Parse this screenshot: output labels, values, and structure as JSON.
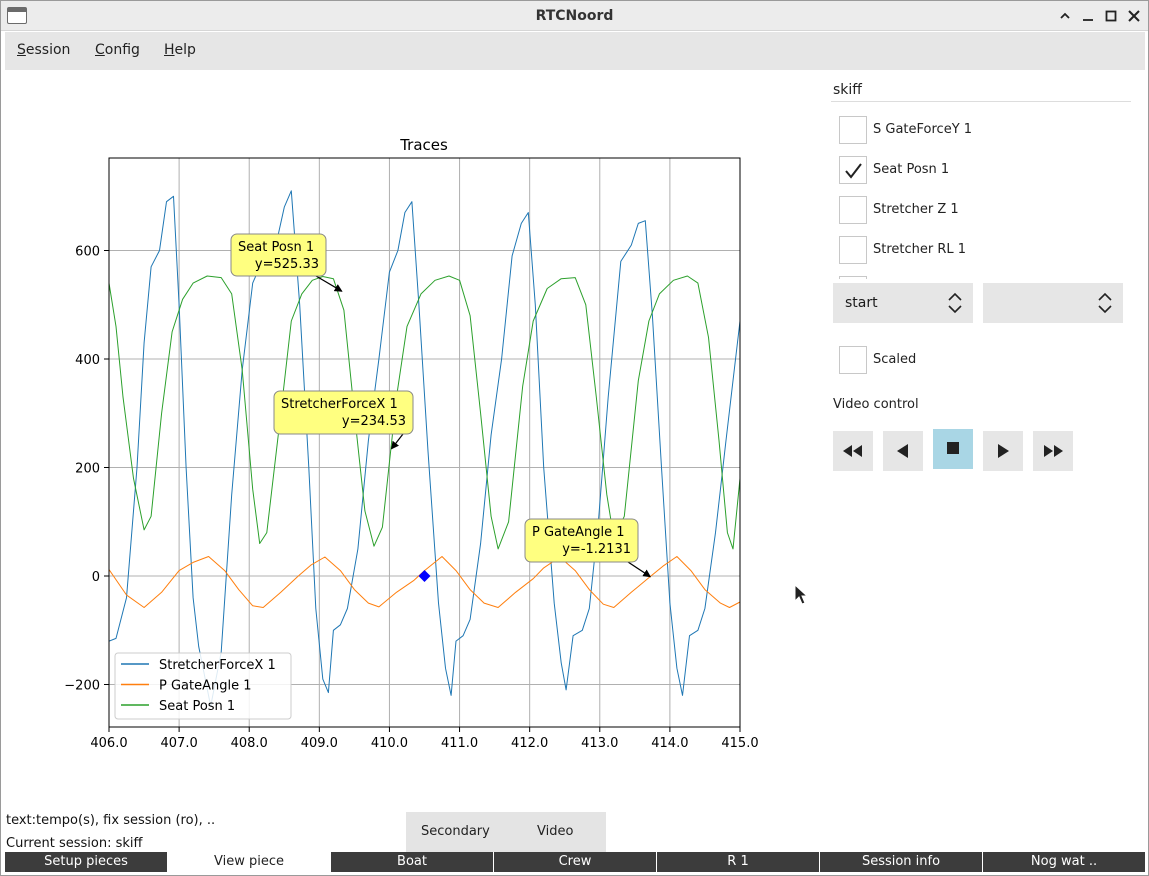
{
  "window": {
    "title": "RTCNoord"
  },
  "menu": [
    {
      "first": "S",
      "rest": "ession"
    },
    {
      "first": "C",
      "rest": "onfig"
    },
    {
      "first": "H",
      "rest": "elp"
    }
  ],
  "chart_data": {
    "type": "line",
    "title": "Traces",
    "xlim": [
      406.0,
      415.0
    ],
    "ylim": [
      -280,
      760
    ],
    "x_ticks": [
      "406.0",
      "407.0",
      "408.0",
      "409.0",
      "410.0",
      "411.0",
      "412.0",
      "413.0",
      "414.0",
      "415.0"
    ],
    "y_ticks": [
      -200,
      0,
      200,
      400,
      600
    ],
    "y_tick_labels": [
      "−200",
      "0",
      "200",
      "400",
      "600"
    ],
    "grid": true,
    "legend_position": "lower-left",
    "series": [
      {
        "name": "StretcherForceX 1",
        "color": "#1f77b4",
        "points": [
          [
            406.0,
            -120
          ],
          [
            406.1,
            -115
          ],
          [
            406.25,
            -40
          ],
          [
            406.4,
            200
          ],
          [
            406.5,
            430
          ],
          [
            406.6,
            570
          ],
          [
            406.72,
            600
          ],
          [
            406.82,
            690
          ],
          [
            406.92,
            700
          ],
          [
            407.0,
            500
          ],
          [
            407.1,
            200
          ],
          [
            407.2,
            -40
          ],
          [
            407.28,
            -130
          ],
          [
            407.45,
            -240
          ],
          [
            407.6,
            -140
          ],
          [
            407.75,
            150
          ],
          [
            407.9,
            380
          ],
          [
            408.05,
            540
          ],
          [
            408.25,
            600
          ],
          [
            408.38,
            610
          ],
          [
            408.5,
            680
          ],
          [
            408.6,
            710
          ],
          [
            408.72,
            500
          ],
          [
            408.85,
            200
          ],
          [
            408.95,
            -60
          ],
          [
            409.05,
            -190
          ],
          [
            409.13,
            -215
          ],
          [
            409.2,
            -100
          ],
          [
            409.3,
            -90
          ],
          [
            409.4,
            -60
          ],
          [
            409.55,
            50
          ],
          [
            409.7,
            250
          ],
          [
            409.85,
            400
          ],
          [
            410.0,
            560
          ],
          [
            410.12,
            600
          ],
          [
            410.22,
            670
          ],
          [
            410.32,
            690
          ],
          [
            410.42,
            500
          ],
          [
            410.55,
            230
          ],
          [
            410.7,
            -50
          ],
          [
            410.8,
            -170
          ],
          [
            410.88,
            -220
          ],
          [
            410.95,
            -120
          ],
          [
            411.05,
            -110
          ],
          [
            411.15,
            -80
          ],
          [
            411.3,
            60
          ],
          [
            411.45,
            260
          ],
          [
            411.6,
            400
          ],
          [
            411.75,
            590
          ],
          [
            411.88,
            650
          ],
          [
            411.98,
            670
          ],
          [
            412.08,
            500
          ],
          [
            412.2,
            200
          ],
          [
            412.35,
            -50
          ],
          [
            412.45,
            -160
          ],
          [
            412.52,
            -210
          ],
          [
            412.62,
            -110
          ],
          [
            412.75,
            -100
          ],
          [
            412.85,
            -60
          ],
          [
            412.98,
            100
          ],
          [
            413.12,
            330
          ],
          [
            413.3,
            580
          ],
          [
            413.45,
            610
          ],
          [
            413.55,
            650
          ],
          [
            413.65,
            655
          ],
          [
            413.75,
            480
          ],
          [
            413.88,
            200
          ],
          [
            414.0,
            -50
          ],
          [
            414.1,
            -170
          ],
          [
            414.18,
            -220
          ],
          [
            414.28,
            -110
          ],
          [
            414.4,
            -100
          ],
          [
            414.5,
            -60
          ],
          [
            414.65,
            80
          ],
          [
            414.8,
            250
          ],
          [
            415.0,
            470
          ]
        ]
      },
      {
        "name": "P GateAngle 1",
        "color": "#ff7f0e",
        "points": [
          [
            406.0,
            12
          ],
          [
            406.25,
            -35
          ],
          [
            406.5,
            -58
          ],
          [
            406.75,
            -30
          ],
          [
            407.0,
            10
          ],
          [
            407.2,
            25
          ],
          [
            407.42,
            36
          ],
          [
            407.65,
            10
          ],
          [
            407.85,
            -25
          ],
          [
            408.05,
            -55
          ],
          [
            408.2,
            -58
          ],
          [
            408.45,
            -30
          ],
          [
            408.7,
            0
          ],
          [
            408.88,
            20
          ],
          [
            409.08,
            35
          ],
          [
            409.3,
            10
          ],
          [
            409.5,
            -25
          ],
          [
            409.7,
            -50
          ],
          [
            409.85,
            -57
          ],
          [
            410.1,
            -30
          ],
          [
            410.35,
            -8
          ],
          [
            410.5,
            10
          ],
          [
            410.75,
            36
          ],
          [
            410.95,
            10
          ],
          [
            411.15,
            -25
          ],
          [
            411.35,
            -50
          ],
          [
            411.55,
            -58
          ],
          [
            411.8,
            -30
          ],
          [
            412.05,
            -5
          ],
          [
            412.2,
            15
          ],
          [
            412.43,
            35
          ],
          [
            412.65,
            10
          ],
          [
            412.85,
            -25
          ],
          [
            413.05,
            -52
          ],
          [
            413.2,
            -58
          ],
          [
            413.45,
            -30
          ],
          [
            413.72,
            -1
          ],
          [
            413.9,
            18
          ],
          [
            414.1,
            36
          ],
          [
            414.3,
            10
          ],
          [
            414.5,
            -25
          ],
          [
            414.72,
            -50
          ],
          [
            414.85,
            -58
          ],
          [
            415.0,
            -48
          ]
        ]
      },
      {
        "name": "Seat Posn 1",
        "color": "#2ca02c",
        "points": [
          [
            406.0,
            540
          ],
          [
            406.1,
            460
          ],
          [
            406.2,
            330
          ],
          [
            406.35,
            180
          ],
          [
            406.5,
            85
          ],
          [
            406.6,
            110
          ],
          [
            406.75,
            300
          ],
          [
            406.9,
            450
          ],
          [
            407.05,
            510
          ],
          [
            407.2,
            540
          ],
          [
            407.4,
            553
          ],
          [
            407.6,
            550
          ],
          [
            407.75,
            520
          ],
          [
            407.9,
            380
          ],
          [
            408.05,
            160
          ],
          [
            408.15,
            60
          ],
          [
            408.25,
            80
          ],
          [
            408.45,
            300
          ],
          [
            408.6,
            470
          ],
          [
            408.75,
            520
          ],
          [
            408.9,
            545
          ],
          [
            409.05,
            552
          ],
          [
            409.2,
            548
          ],
          [
            409.35,
            490
          ],
          [
            409.5,
            300
          ],
          [
            409.65,
            120
          ],
          [
            409.78,
            55
          ],
          [
            409.9,
            90
          ],
          [
            410.1,
            330
          ],
          [
            410.25,
            460
          ],
          [
            410.45,
            520
          ],
          [
            410.65,
            545
          ],
          [
            410.85,
            553
          ],
          [
            411.0,
            545
          ],
          [
            411.15,
            480
          ],
          [
            411.3,
            300
          ],
          [
            411.45,
            110
          ],
          [
            411.55,
            50
          ],
          [
            411.7,
            100
          ],
          [
            411.9,
            350
          ],
          [
            412.05,
            470
          ],
          [
            412.25,
            530
          ],
          [
            412.45,
            548
          ],
          [
            412.65,
            550
          ],
          [
            412.8,
            500
          ],
          [
            412.95,
            330
          ],
          [
            413.1,
            150
          ],
          [
            413.2,
            70
          ],
          [
            413.35,
            110
          ],
          [
            413.55,
            360
          ],
          [
            413.7,
            470
          ],
          [
            413.85,
            520
          ],
          [
            414.05,
            545
          ],
          [
            414.25,
            553
          ],
          [
            414.4,
            540
          ],
          [
            414.55,
            440
          ],
          [
            414.7,
            250
          ],
          [
            414.82,
            80
          ],
          [
            414.9,
            50
          ],
          [
            415.0,
            180
          ]
        ]
      }
    ],
    "annotations": [
      {
        "name": "Seat Posn 1",
        "value": "y=525.33",
        "at": [
          409.32,
          525
        ]
      },
      {
        "name": "StretcherForceX 1",
        "value": "y=234.53",
        "at": [
          410.03,
          234.53
        ]
      },
      {
        "name": "P GateAngle 1",
        "value": "y=-1.2131",
        "at": [
          413.72,
          -1.21
        ]
      }
    ],
    "marker": {
      "x": 410.5,
      "y": 0,
      "color": "#0000ff"
    }
  },
  "side": {
    "crew": "skiff",
    "channels": [
      {
        "label": "S GateForceY 1",
        "checked": false
      },
      {
        "label": "Seat Posn 1",
        "checked": true
      },
      {
        "label": "Stretcher Z 1",
        "checked": false
      },
      {
        "label": "Stretcher RL 1",
        "checked": false
      },
      {
        "label": "",
        "checked": false
      }
    ],
    "spin1": "start",
    "spin2": "",
    "scaled_label": "Scaled",
    "video_label": "Video control"
  },
  "status": {
    "line1": "text:tempo(s), fix session (ro), ..",
    "line2": "Current session:  skiff"
  },
  "subtabs": [
    "Secondary",
    "Video"
  ],
  "tabs": [
    "Setup pieces",
    "View piece",
    "Boat",
    "Crew",
    "R 1",
    "Session info",
    "Nog wat .."
  ],
  "active_tab": 1
}
